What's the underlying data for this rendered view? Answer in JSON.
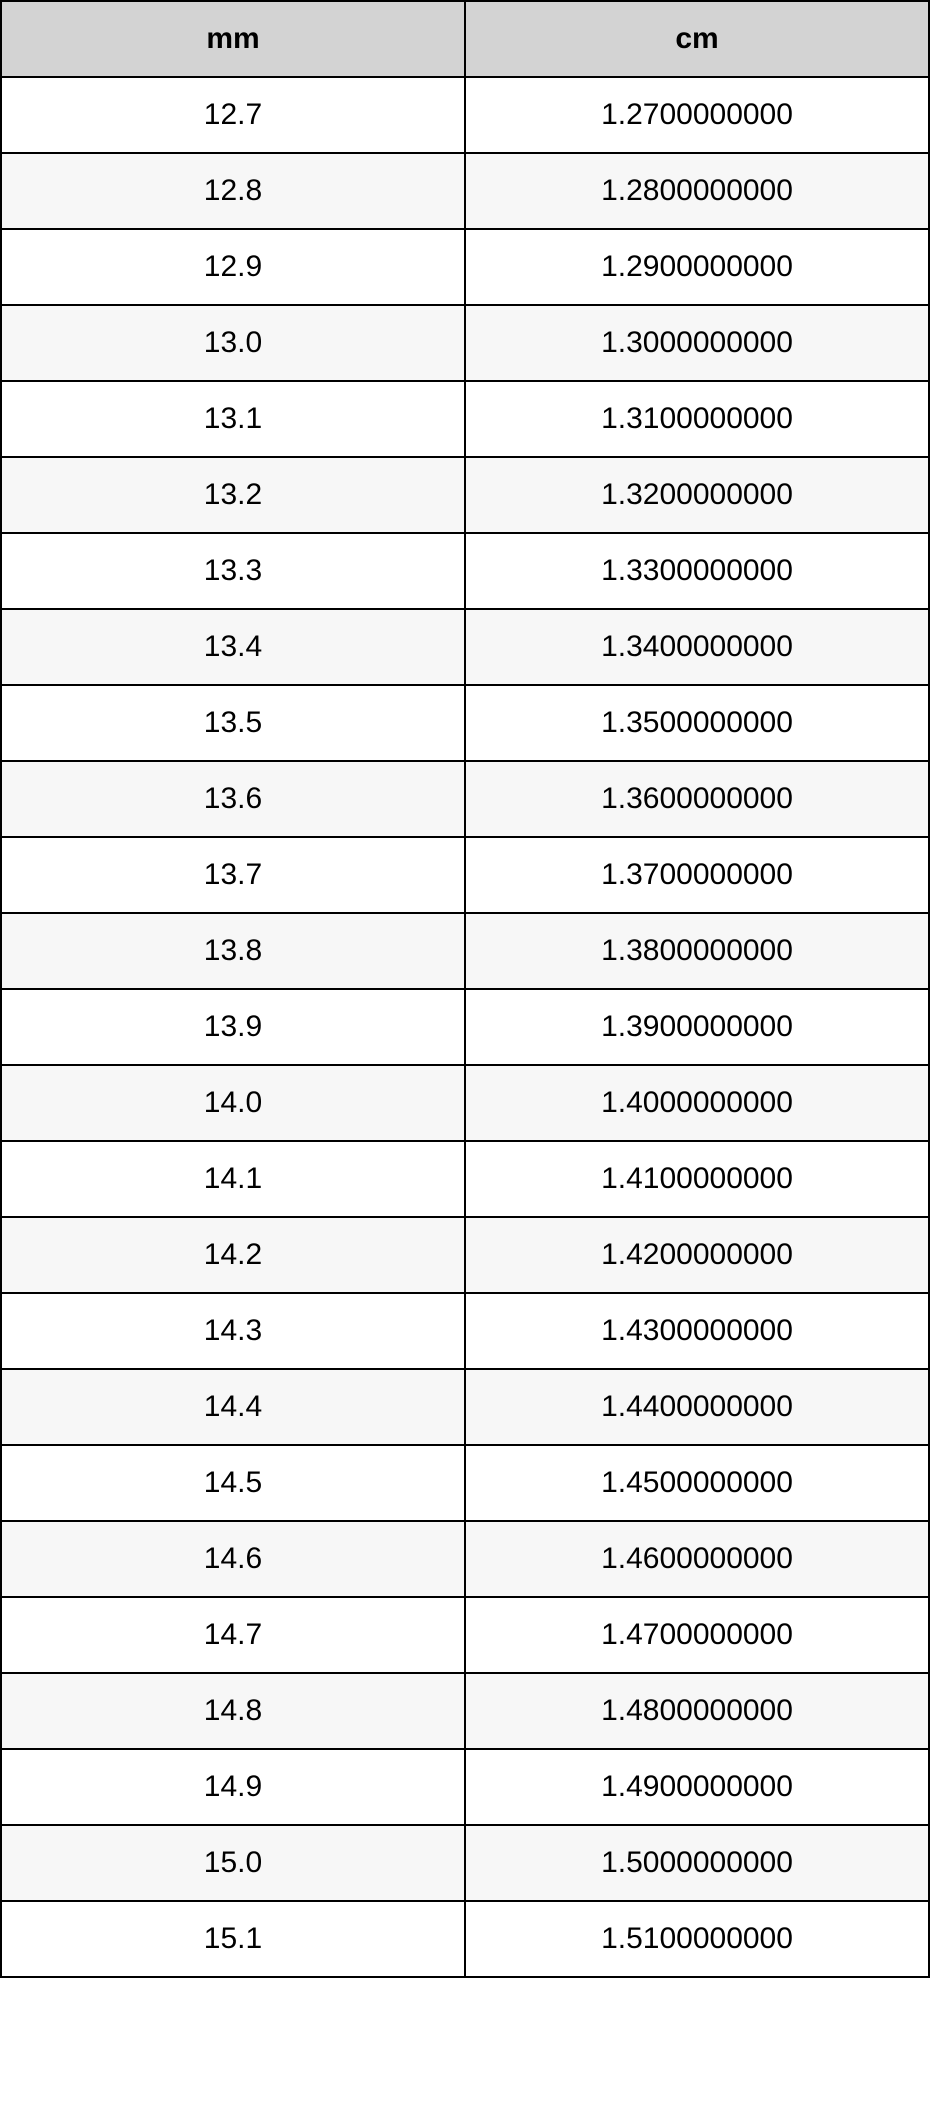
{
  "table": {
    "type": "table",
    "columns": [
      "mm",
      "cm"
    ],
    "header_background": "#d3d3d3",
    "border_color": "#000000",
    "row_even_background": "#ffffff",
    "row_odd_background": "#f7f7f7",
    "font_size": 30,
    "header_font_weight": "bold",
    "text_color": "#000000",
    "rows": [
      [
        "12.7",
        "1.2700000000"
      ],
      [
        "12.8",
        "1.2800000000"
      ],
      [
        "12.9",
        "1.2900000000"
      ],
      [
        "13.0",
        "1.3000000000"
      ],
      [
        "13.1",
        "1.3100000000"
      ],
      [
        "13.2",
        "1.3200000000"
      ],
      [
        "13.3",
        "1.3300000000"
      ],
      [
        "13.4",
        "1.3400000000"
      ],
      [
        "13.5",
        "1.3500000000"
      ],
      [
        "13.6",
        "1.3600000000"
      ],
      [
        "13.7",
        "1.3700000000"
      ],
      [
        "13.8",
        "1.3800000000"
      ],
      [
        "13.9",
        "1.3900000000"
      ],
      [
        "14.0",
        "1.4000000000"
      ],
      [
        "14.1",
        "1.4100000000"
      ],
      [
        "14.2",
        "1.4200000000"
      ],
      [
        "14.3",
        "1.4300000000"
      ],
      [
        "14.4",
        "1.4400000000"
      ],
      [
        "14.5",
        "1.4500000000"
      ],
      [
        "14.6",
        "1.4600000000"
      ],
      [
        "14.7",
        "1.4700000000"
      ],
      [
        "14.8",
        "1.4800000000"
      ],
      [
        "14.9",
        "1.4900000000"
      ],
      [
        "15.0",
        "1.5000000000"
      ],
      [
        "15.1",
        "1.5100000000"
      ]
    ]
  }
}
